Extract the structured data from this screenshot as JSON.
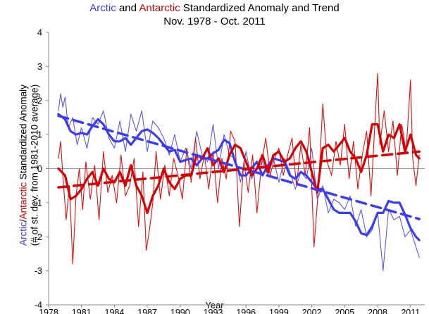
{
  "chart_data": {
    "type": "line",
    "title_parts": [
      {
        "text": "Arctic",
        "color": "#3b3bf0"
      },
      {
        "text": " and ",
        "color": "#000000"
      },
      {
        "text": "Antarctic",
        "color": "#d40000"
      },
      {
        "text": " Standardized Anomaly and Trend",
        "color": "#000000"
      }
    ],
    "subtitle": "Nov. 1978 - Oct. 2011",
    "xlabel": "Year",
    "ylabel_parts": [
      {
        "text": "Arctic",
        "color": "#3b3bf0"
      },
      {
        "text": "/",
        "color": "#000000"
      },
      {
        "text": "Antarctic",
        "color": "#d40000"
      },
      {
        "text": " Standardized Anomaly",
        "color": "#000000"
      }
    ],
    "ylabel2": "(# of st. dev. from 1981-2010 average)",
    "xlim": [
      1978,
      2012.3
    ],
    "ylim": [
      -4,
      4
    ],
    "xticks": [
      1978,
      1981,
      1984,
      1987,
      1990,
      1993,
      1996,
      1999,
      2002,
      2005,
      2008,
      2011
    ],
    "xtick_labels": [
      "1978",
      "1981",
      "1984",
      "1987",
      "1990",
      "1993",
      "1996",
      "1999",
      "2002",
      "2005",
      "2008",
      "2011"
    ],
    "yticks": [
      -4,
      -3,
      -2,
      -1,
      0,
      1,
      2,
      3,
      4
    ],
    "ytick_labels": [
      "-4",
      "-3",
      "-2",
      "-1",
      "0",
      "1",
      "2",
      "3",
      "4"
    ],
    "colors": {
      "arctic_monthly": "#5a5af0",
      "arctic_smooth": "#3c3cf5",
      "antarctic_monthly": "#e01010",
      "antarctic_smooth": "#d80000"
    },
    "series": [
      {
        "name": "Arctic monthly anomaly",
        "style": "thin",
        "x": [
          1978.9,
          1979.1,
          1979.3,
          1979.5,
          1979.8,
          1980.2,
          1980.6,
          1981.0,
          1981.5,
          1982.0,
          1982.5,
          1983.0,
          1983.5,
          1984.0,
          1984.5,
          1985.0,
          1985.5,
          1986.0,
          1986.5,
          1987.0,
          1987.5,
          1988.0,
          1988.5,
          1989.0,
          1989.5,
          1990.0,
          1990.5,
          1991.0,
          1991.5,
          1992.0,
          1992.5,
          1993.0,
          1993.5,
          1994.0,
          1994.5,
          1995.0,
          1995.5,
          1996.0,
          1996.5,
          1997.0,
          1997.5,
          1998.0,
          1998.5,
          1999.0,
          1999.5,
          2000.0,
          2000.5,
          2001.0,
          2001.5,
          2002.0,
          2002.5,
          2003.0,
          2003.5,
          2004.0,
          2004.5,
          2005.0,
          2005.5,
          2006.0,
          2006.5,
          2007.0,
          2007.5,
          2008.0,
          2008.5,
          2009.0,
          2009.5,
          2010.0,
          2010.5,
          2011.0,
          2011.5,
          2011.8
        ],
        "values": [
          1.7,
          2.2,
          1.8,
          2.1,
          1.2,
          1.5,
          0.7,
          1.2,
          0.6,
          1.5,
          1.3,
          1.7,
          0.9,
          0.6,
          1.4,
          0.5,
          1.6,
          1.1,
          1.7,
          0.5,
          1.4,
          1.2,
          0.9,
          0.4,
          1.0,
          0.2,
          0.6,
          0.0,
          1.1,
          0.4,
          0.2,
          1.3,
          0.0,
          1.0,
          0.4,
          0.3,
          -0.4,
          0.5,
          -0.3,
          0.0,
          0.2,
          -0.2,
          0.3,
          -0.4,
          0.3,
          -0.1,
          -0.6,
          -0.1,
          -0.3,
          0.6,
          -0.9,
          -0.5,
          -1.3,
          -0.9,
          -1.0,
          -1.2,
          -0.8,
          -1.7,
          -1.2,
          -2.0,
          -1.8,
          -1.3,
          -3.0,
          -1.2,
          -1.5,
          -1.4,
          -2.0,
          -1.8,
          -2.3,
          -2.6
        ]
      },
      {
        "name": "Antarctic monthly anomaly",
        "style": "thin",
        "x": [
          1978.9,
          1979.1,
          1979.3,
          1979.6,
          1979.9,
          1980.2,
          1980.5,
          1980.8,
          1981.1,
          1981.4,
          1981.8,
          1982.2,
          1982.6,
          1983.0,
          1983.4,
          1983.8,
          1984.2,
          1984.6,
          1985.0,
          1985.4,
          1985.8,
          1986.2,
          1986.6,
          1986.9,
          1987.2,
          1987.5,
          1987.8,
          1988.2,
          1988.6,
          1989.0,
          1989.4,
          1989.8,
          1990.2,
          1990.6,
          1991.0,
          1991.4,
          1991.8,
          1992.2,
          1992.6,
          1993.0,
          1993.4,
          1993.8,
          1994.2,
          1994.6,
          1995.0,
          1995.4,
          1995.8,
          1996.2,
          1996.6,
          1997.0,
          1997.4,
          1997.8,
          1998.2,
          1998.6,
          1999.0,
          1999.4,
          1999.8,
          2000.2,
          2000.6,
          2001.0,
          2001.4,
          2001.8,
          2002.2,
          2002.6,
          2003.0,
          2003.4,
          2003.8,
          2004.2,
          2004.6,
          2005.0,
          2005.4,
          2005.8,
          2006.2,
          2006.6,
          2007.0,
          2007.4,
          2007.8,
          2008.0,
          2008.2,
          2008.6,
          2009.0,
          2009.4,
          2009.8,
          2010.2,
          2010.6,
          2011.0,
          2011.2,
          2011.5,
          2011.8
        ],
        "values": [
          0.3,
          0.8,
          -0.2,
          -1.5,
          -0.5,
          -2.8,
          -0.8,
          0.0,
          -1.2,
          0.2,
          -0.9,
          0.1,
          -1.5,
          0.5,
          -0.7,
          -0.2,
          -1.0,
          0.4,
          -0.8,
          -0.5,
          0.3,
          -1.7,
          -0.1,
          -2.4,
          -1.8,
          -1.0,
          0.5,
          -0.9,
          0.1,
          -0.8,
          0.3,
          -0.2,
          -0.9,
          0.6,
          -0.4,
          0.9,
          -0.3,
          0.4,
          -0.6,
          0.5,
          -1.0,
          0.3,
          -0.3,
          1.1,
          0.8,
          -1.7,
          0.2,
          -0.7,
          0.4,
          -1.3,
          0.1,
          0.9,
          -0.2,
          0.3,
          0.6,
          -0.2,
          0.4,
          0.9,
          -0.5,
          0.7,
          -0.2,
          1.2,
          -2.3,
          -0.6,
          1.9,
          0.2,
          -0.2,
          0.8,
          0.1,
          1.3,
          -0.3,
          0.8,
          -0.6,
          0.4,
          1.1,
          -0.8,
          1.6,
          2.8,
          0.7,
          1.7,
          0.5,
          1.4,
          -0.2,
          1.3,
          0.5,
          2.6,
          0.3,
          -0.5,
          0.4
        ]
      },
      {
        "name": "Arctic smoothed",
        "style": "thick",
        "x": [
          1978.9,
          1979.5,
          1980.0,
          1980.5,
          1981.0,
          1981.5,
          1982.0,
          1982.5,
          1983.0,
          1983.5,
          1984.0,
          1984.5,
          1985.0,
          1985.5,
          1986.0,
          1986.5,
          1987.0,
          1987.5,
          1988.0,
          1988.5,
          1989.0,
          1989.5,
          1990.0,
          1990.5,
          1991.0,
          1991.5,
          1992.0,
          1992.5,
          1993.0,
          1993.5,
          1994.0,
          1994.5,
          1995.0,
          1995.5,
          1996.0,
          1996.5,
          1997.0,
          1997.5,
          1998.0,
          1998.5,
          1999.0,
          1999.5,
          2000.0,
          2000.5,
          2001.0,
          2001.5,
          2002.0,
          2002.5,
          2003.0,
          2003.5,
          2004.0,
          2004.5,
          2005.0,
          2005.5,
          2006.0,
          2006.5,
          2007.0,
          2007.5,
          2008.0,
          2008.5,
          2009.0,
          2009.5,
          2010.0,
          2010.5,
          2011.0,
          2011.5,
          2011.8
        ],
        "values": [
          1.6,
          1.45,
          1.1,
          1.0,
          1.05,
          1.0,
          1.25,
          1.45,
          1.3,
          1.0,
          0.8,
          0.8,
          0.9,
          0.7,
          0.9,
          1.1,
          1.15,
          1.05,
          0.9,
          0.7,
          0.5,
          0.55,
          0.2,
          0.25,
          0.3,
          0.1,
          0.3,
          0.3,
          0.45,
          0.55,
          0.85,
          0.75,
          0.2,
          -0.2,
          -0.2,
          0.0,
          0.2,
          -0.2,
          0.1,
          0.3,
          0.25,
          0.2,
          -0.2,
          -0.3,
          -0.1,
          -0.2,
          -0.4,
          -0.6,
          -0.6,
          -0.9,
          -1.2,
          -1.3,
          -1.3,
          -1.3,
          -1.55,
          -1.9,
          -1.95,
          -1.7,
          -1.3,
          -1.3,
          -0.95,
          -1.0,
          -1.0,
          -1.35,
          -1.75,
          -2.0,
          -2.1
        ]
      },
      {
        "name": "Antarctic smoothed",
        "style": "thick",
        "x": [
          1978.9,
          1979.5,
          1980.0,
          1980.5,
          1981.0,
          1981.5,
          1982.0,
          1982.5,
          1983.0,
          1983.5,
          1984.0,
          1984.5,
          1985.0,
          1985.5,
          1986.0,
          1986.5,
          1987.0,
          1987.5,
          1988.0,
          1988.5,
          1989.0,
          1989.5,
          1990.0,
          1990.5,
          1991.0,
          1991.5,
          1992.0,
          1992.5,
          1993.0,
          1993.5,
          1994.0,
          1994.5,
          1995.0,
          1995.5,
          1996.0,
          1996.5,
          1997.0,
          1997.5,
          1998.0,
          1998.5,
          1999.0,
          1999.5,
          2000.0,
          2000.5,
          2001.0,
          2001.5,
          2002.0,
          2002.5,
          2003.0,
          2003.5,
          2004.0,
          2004.5,
          2005.0,
          2005.5,
          2006.0,
          2006.5,
          2007.0,
          2007.5,
          2008.0,
          2008.5,
          2009.0,
          2009.5,
          2010.0,
          2010.5,
          2011.0,
          2011.5,
          2011.8
        ],
        "values": [
          0.0,
          -0.2,
          -0.9,
          -0.8,
          -0.6,
          -0.3,
          -0.1,
          -0.5,
          0.0,
          -0.3,
          -0.4,
          -0.1,
          -0.5,
          0.1,
          -0.5,
          -0.8,
          -1.3,
          -0.8,
          -0.5,
          0.0,
          -0.4,
          -0.6,
          -0.3,
          -0.2,
          -0.2,
          0.4,
          0.3,
          0.6,
          0.1,
          0.3,
          -0.1,
          0.4,
          0.7,
          0.6,
          0.2,
          -0.2,
          0.0,
          0.4,
          -0.1,
          0.4,
          0.5,
          0.2,
          0.3,
          0.6,
          0.8,
          0.5,
          -0.1,
          -0.7,
          0.6,
          0.7,
          0.5,
          0.7,
          0.9,
          0.5,
          0.3,
          -0.1,
          0.4,
          1.3,
          1.3,
          0.5,
          1.0,
          0.9,
          1.3,
          0.5,
          1.0,
          0.4,
          0.3
        ]
      },
      {
        "name": "Arctic trend",
        "style": "dashed",
        "x": [
          1978.9,
          2011.8
        ],
        "values": [
          1.55,
          -1.48
        ]
      },
      {
        "name": "Antarctic trend",
        "style": "dashed",
        "x": [
          1978.9,
          2011.8
        ],
        "values": [
          -0.55,
          0.5
        ]
      }
    ]
  }
}
